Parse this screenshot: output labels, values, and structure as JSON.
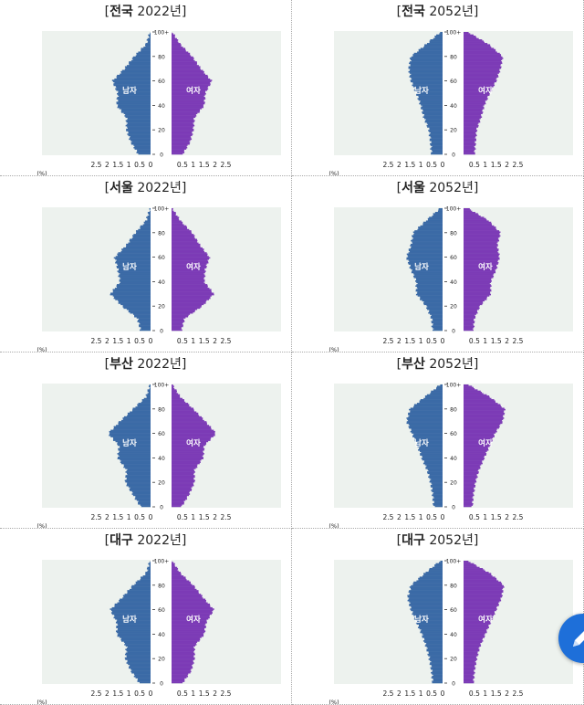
{
  "colors": {
    "male": "#3b6aa6",
    "female": "#7c3bb6",
    "plot_bg": "#edf2ee",
    "fab": "#1e6fd9"
  },
  "labels": {
    "male": "남자",
    "female": "여자",
    "percent_unit": "(%)"
  },
  "fab": {
    "icon": "pencil-icon"
  },
  "chart_data": [
    {
      "type": "population-pyramid",
      "region": "전국",
      "year": "2022년",
      "ages": [
        0,
        10,
        20,
        30,
        40,
        50,
        60,
        70,
        80,
        90,
        100
      ],
      "age_ticks": [
        "0",
        "20",
        "40",
        "60",
        "80",
        "100+"
      ],
      "x_ticks": [
        "2.5",
        "2",
        "1.5",
        "1",
        "0.5",
        "0",
        "0.5",
        "1",
        "1.5",
        "2",
        "2.5"
      ],
      "xlim": [
        0,
        2.5
      ],
      "male": [
        0.55,
        0.9,
        1.1,
        1.1,
        1.55,
        1.5,
        1.75,
        1.2,
        0.75,
        0.2,
        0.02
      ],
      "female": [
        0.5,
        0.85,
        1.0,
        1.05,
        1.5,
        1.55,
        1.85,
        1.35,
        0.95,
        0.4,
        0.03
      ]
    },
    {
      "type": "population-pyramid",
      "region": "전국",
      "year": "2052년",
      "ages": [
        0,
        10,
        20,
        30,
        40,
        50,
        60,
        70,
        80,
        90,
        100
      ],
      "age_ticks": [
        "0",
        "20",
        "40",
        "60",
        "80",
        "100+"
      ],
      "x_ticks": [
        "2.5",
        "2",
        "1.5",
        "1",
        "0.5",
        "0",
        "0.5",
        "1",
        "1.5",
        "2",
        "2.5"
      ],
      "xlim": [
        0,
        2.5
      ],
      "male": [
        0.5,
        0.55,
        0.62,
        0.85,
        1.0,
        1.2,
        1.45,
        1.55,
        1.45,
        0.75,
        0.1
      ],
      "female": [
        0.5,
        0.55,
        0.6,
        0.8,
        0.95,
        1.2,
        1.5,
        1.7,
        1.8,
        1.15,
        0.2
      ]
    },
    {
      "type": "population-pyramid",
      "region": "서울",
      "year": "2022년",
      "ages": [
        0,
        10,
        20,
        30,
        40,
        50,
        60,
        70,
        80,
        90,
        100
      ],
      "age_ticks": [
        "0",
        "20",
        "40",
        "60",
        "80",
        "100+"
      ],
      "x_ticks": [
        "2.5",
        "2",
        "1.5",
        "1",
        "0.5",
        "0",
        "0.5",
        "1",
        "1.5",
        "2",
        "2.5"
      ],
      "xlim": [
        0,
        2.5
      ],
      "male": [
        0.45,
        0.6,
        1.3,
        1.85,
        1.4,
        1.5,
        1.65,
        1.1,
        0.7,
        0.2,
        0.02
      ],
      "female": [
        0.45,
        0.6,
        1.4,
        1.95,
        1.5,
        1.55,
        1.75,
        1.3,
        0.95,
        0.4,
        0.03
      ]
    },
    {
      "type": "population-pyramid",
      "region": "서울",
      "year": "2052년",
      "ages": [
        0,
        10,
        20,
        30,
        40,
        50,
        60,
        70,
        80,
        90,
        100
      ],
      "age_ticks": [
        "0",
        "20",
        "40",
        "60",
        "80",
        "100+"
      ],
      "x_ticks": [
        "2.5",
        "2",
        "1.5",
        "1",
        "0.5",
        "0",
        "0.5",
        "1",
        "1.5",
        "2",
        "2.5"
      ],
      "xlim": [
        0,
        2.5
      ],
      "male": [
        0.45,
        0.5,
        0.75,
        1.2,
        1.2,
        1.45,
        1.65,
        1.45,
        1.35,
        0.75,
        0.1
      ],
      "female": [
        0.45,
        0.5,
        0.75,
        1.25,
        1.25,
        1.5,
        1.65,
        1.55,
        1.7,
        1.15,
        0.2
      ]
    },
    {
      "type": "population-pyramid",
      "region": "부산",
      "year": "2022년",
      "ages": [
        0,
        10,
        20,
        30,
        40,
        50,
        60,
        70,
        80,
        90,
        100
      ],
      "age_ticks": [
        "0",
        "20",
        "40",
        "60",
        "80",
        "100+"
      ],
      "x_ticks": [
        "2.5",
        "2",
        "1.5",
        "1",
        "0.5",
        "0",
        "0.5",
        "1",
        "1.5",
        "2",
        "2.5"
      ],
      "xlim": [
        0,
        2.5
      ],
      "male": [
        0.45,
        0.8,
        1.15,
        1.1,
        1.5,
        1.45,
        1.95,
        1.4,
        0.8,
        0.2,
        0.02
      ],
      "female": [
        0.45,
        0.8,
        1.05,
        1.05,
        1.45,
        1.5,
        2.05,
        1.55,
        1.0,
        0.4,
        0.03
      ]
    },
    {
      "type": "population-pyramid",
      "region": "부산",
      "year": "2052년",
      "ages": [
        0,
        10,
        20,
        30,
        40,
        50,
        60,
        70,
        80,
        90,
        100
      ],
      "age_ticks": [
        "0",
        "20",
        "40",
        "60",
        "80",
        "100+"
      ],
      "x_ticks": [
        "2.5",
        "2",
        "1.5",
        "1",
        "0.5",
        "0",
        "0.5",
        "1",
        "1.5",
        "2",
        "2.5"
      ],
      "xlim": [
        0,
        2.5
      ],
      "male": [
        0.4,
        0.45,
        0.55,
        0.7,
        0.95,
        1.15,
        1.4,
        1.65,
        1.5,
        0.8,
        0.1
      ],
      "female": [
        0.4,
        0.45,
        0.55,
        0.7,
        0.95,
        1.2,
        1.45,
        1.8,
        1.9,
        1.2,
        0.2
      ]
    },
    {
      "type": "population-pyramid",
      "region": "대구",
      "year": "2022년",
      "ages": [
        0,
        10,
        20,
        30,
        40,
        50,
        60,
        70,
        80,
        90,
        100
      ],
      "age_ticks": [
        "0",
        "20",
        "40",
        "60",
        "80",
        "100+"
      ],
      "x_ticks": [
        "2.5",
        "2",
        "1.5",
        "1",
        "0.5",
        "0",
        "0.5",
        "1",
        "1.5",
        "2",
        "2.5"
      ],
      "xlim": [
        0,
        2.5
      ],
      "male": [
        0.5,
        0.9,
        1.15,
        1.1,
        1.55,
        1.55,
        1.85,
        1.3,
        0.8,
        0.2,
        0.02
      ],
      "female": [
        0.5,
        0.9,
        1.05,
        1.05,
        1.5,
        1.6,
        1.95,
        1.45,
        1.0,
        0.4,
        0.03
      ]
    },
    {
      "type": "population-pyramid",
      "region": "대구",
      "year": "2052년",
      "ages": [
        0,
        10,
        20,
        30,
        40,
        50,
        60,
        70,
        80,
        90,
        100
      ],
      "age_ticks": [
        "0",
        "20",
        "40",
        "60",
        "80",
        "100+"
      ],
      "x_ticks": [
        "2.5",
        "2",
        "1.5",
        "1",
        "0.5",
        "0",
        "0.5",
        "1",
        "1.5",
        "2",
        "2.5"
      ],
      "xlim": [
        0,
        2.5
      ],
      "male": [
        0.45,
        0.5,
        0.6,
        0.75,
        0.95,
        1.2,
        1.45,
        1.6,
        1.45,
        0.8,
        0.1
      ],
      "female": [
        0.45,
        0.5,
        0.6,
        0.75,
        1.0,
        1.25,
        1.5,
        1.75,
        1.85,
        1.2,
        0.2
      ]
    }
  ]
}
